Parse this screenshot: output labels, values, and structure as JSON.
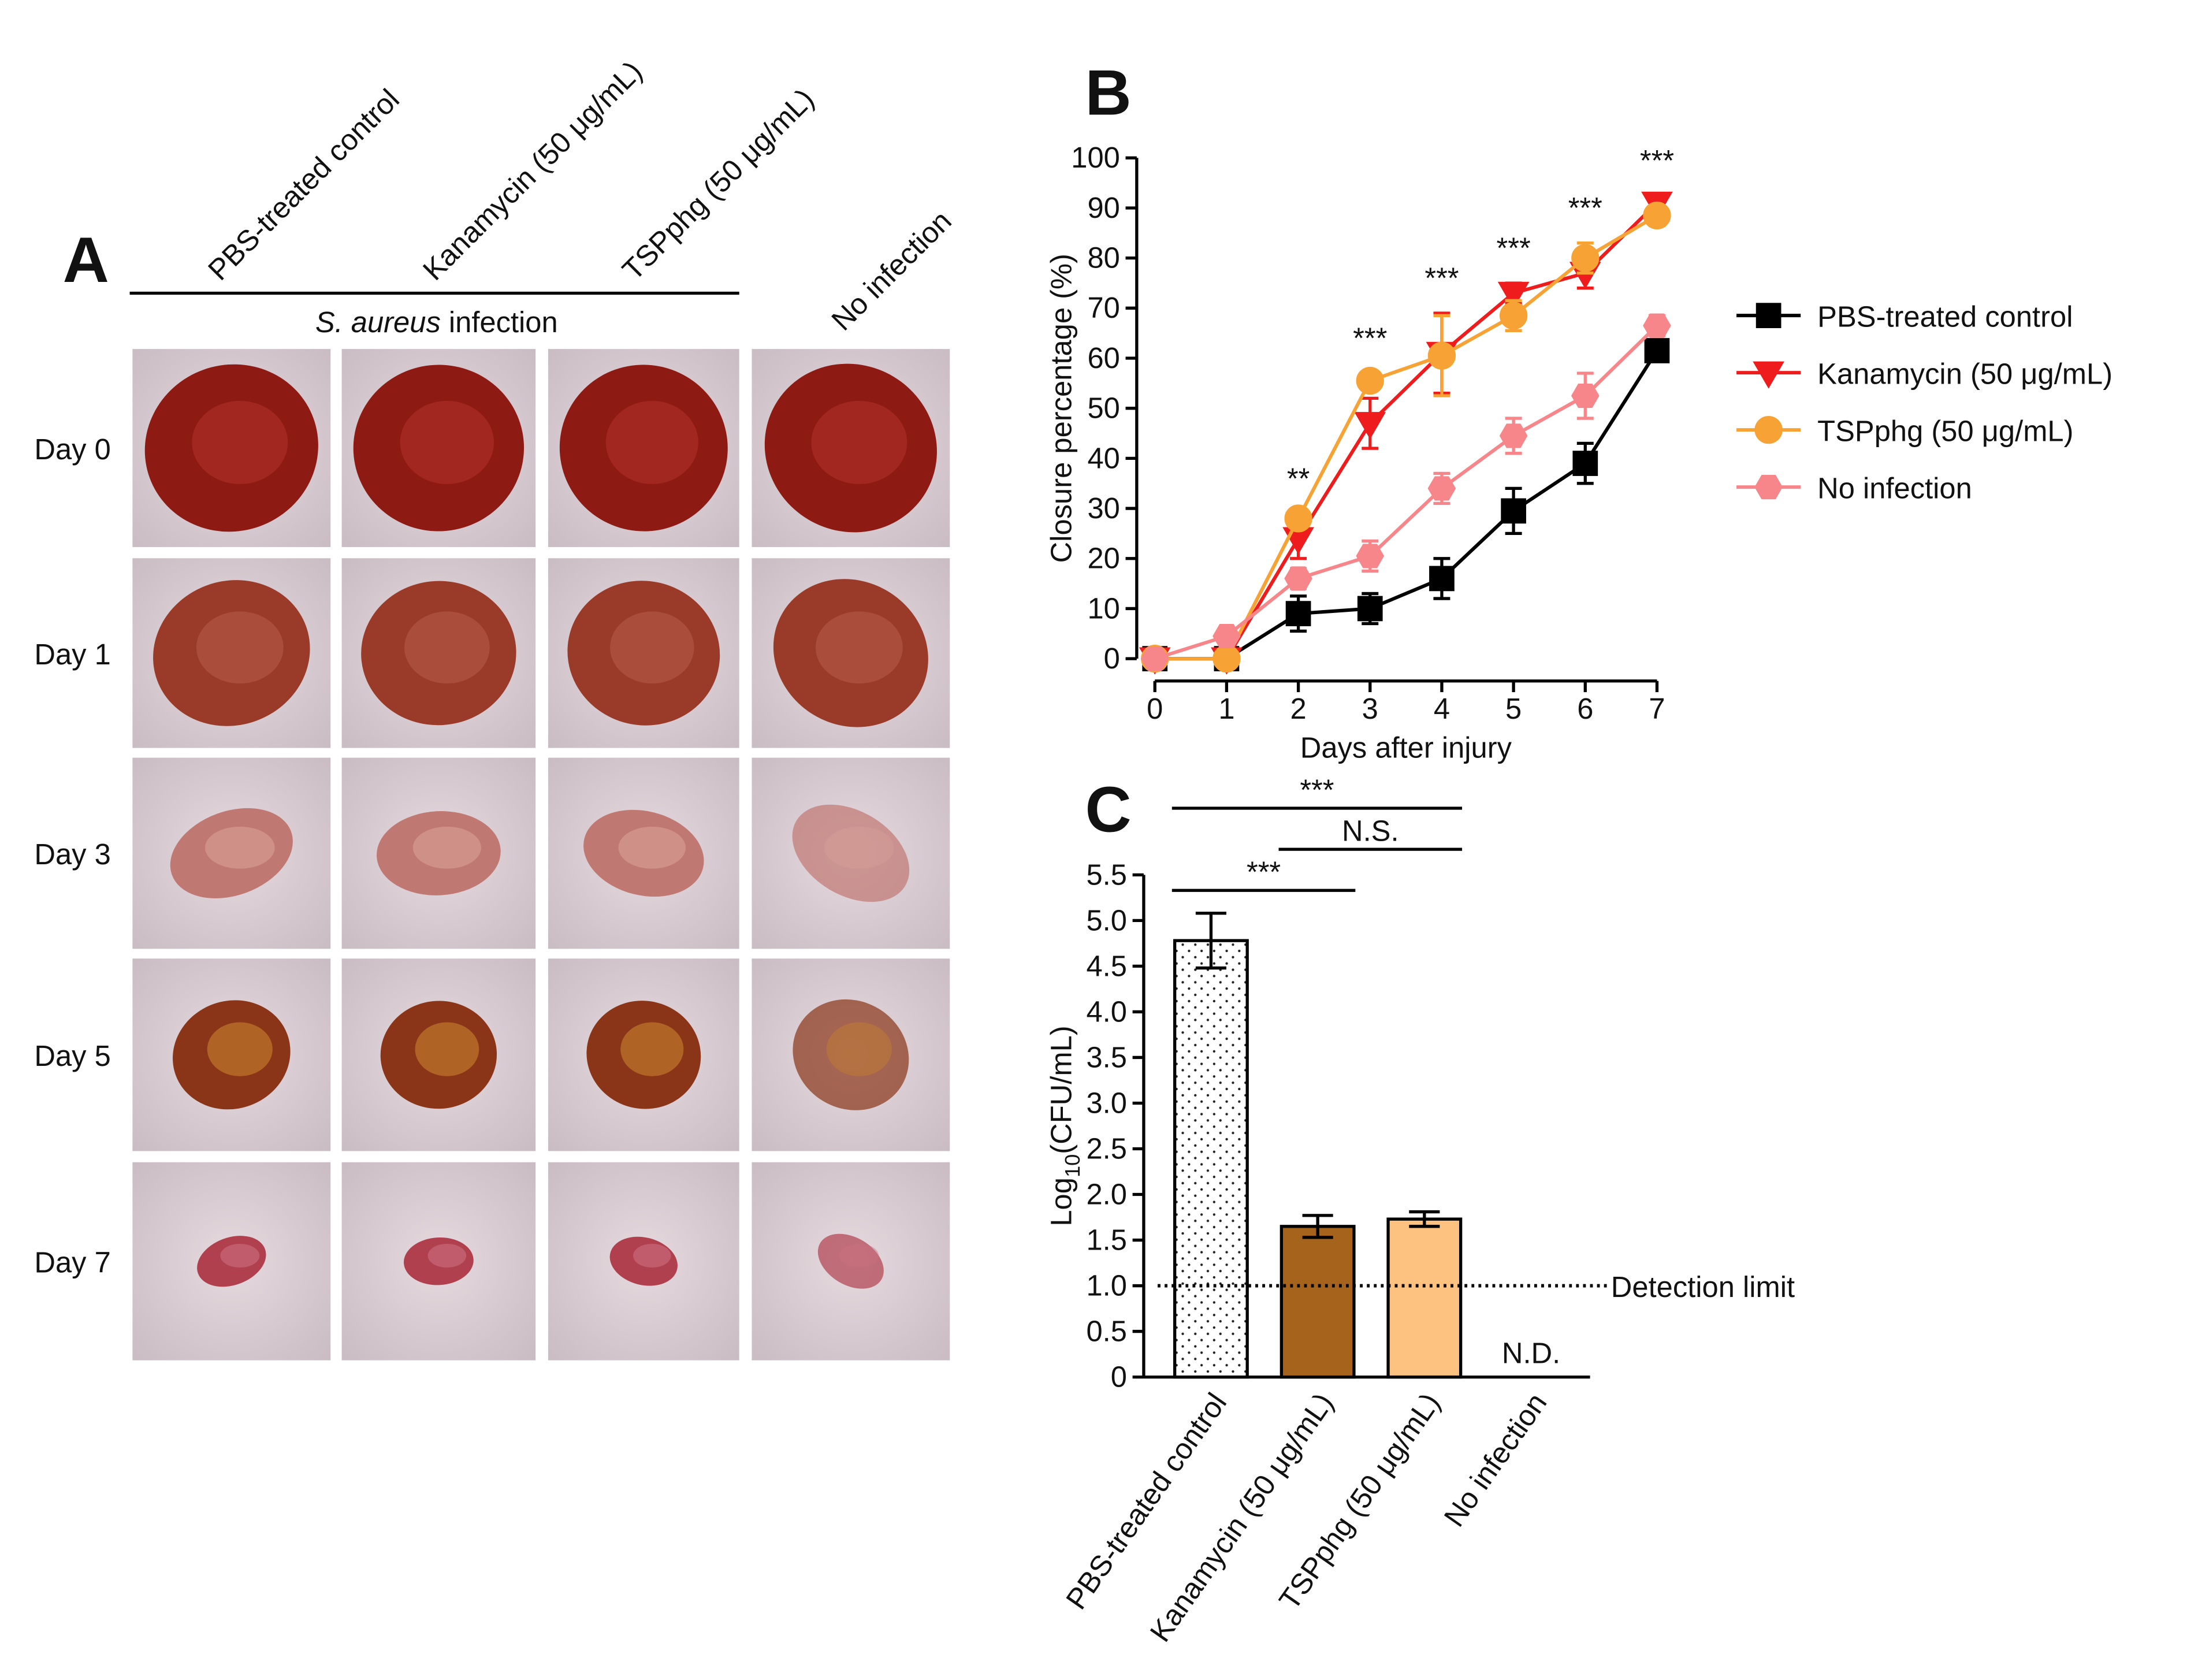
{
  "photo_grid": {
    "label": "A",
    "columns": [
      "PBS-treated control",
      "Kanamycin (50 μg/mL)",
      "TSPphg (50 μg/mL)",
      "No infection"
    ],
    "group_label": {
      "italic": "S. aureus",
      "text": " infection"
    },
    "rows": [
      "Day 0",
      "Day 1",
      "Day 3",
      "Day 5",
      "Day 7"
    ]
  },
  "chart_data": [
    {
      "type": "line",
      "label": "B",
      "xlabel": "Days after injury",
      "ylabel": "Closure percentage (%)",
      "x": [
        0,
        1,
        2,
        3,
        4,
        5,
        6,
        7
      ],
      "xlim": [
        0,
        7
      ],
      "xticks": [
        0,
        1,
        2,
        3,
        4,
        5,
        6,
        7
      ],
      "ylim": [
        0,
        100
      ],
      "yticks": [
        0,
        10,
        20,
        30,
        40,
        50,
        60,
        70,
        80,
        90,
        100
      ],
      "legend": "right",
      "series": [
        {
          "name": "PBS-treated control",
          "color": "#000000",
          "marker": "square",
          "values": [
            0,
            0,
            9,
            10,
            16,
            29.5,
            39,
            61.5
          ],
          "errors": [
            0,
            0,
            3.5,
            3,
            4,
            4.5,
            4,
            1
          ]
        },
        {
          "name": "Kanamycin (50 μg/mL)",
          "color": "#ee1c1c",
          "marker": "triangle-down",
          "values": [
            0,
            0,
            24,
            47,
            61,
            73,
            77,
            91
          ],
          "errors": [
            0,
            0,
            4,
            5,
            8,
            2,
            3,
            1.5
          ]
        },
        {
          "name": "TSPphg (50 μg/mL)",
          "color": "#f7a234",
          "marker": "circle",
          "values": [
            0,
            0,
            28,
            55.5,
            60.5,
            68.5,
            80,
            88.5
          ],
          "errors": [
            0,
            0,
            1,
            1.5,
            8,
            3,
            3,
            2
          ]
        },
        {
          "name": "No infection",
          "color": "#f6868a",
          "marker": "hexagon",
          "values": [
            0,
            4.5,
            16,
            20.5,
            34,
            44.5,
            52.5,
            66.5
          ],
          "errors": [
            0,
            1,
            2,
            3,
            3,
            3.5,
            4.5,
            2
          ]
        }
      ],
      "significance": {
        "x": [
          2,
          3,
          4,
          5,
          6,
          7
        ],
        "labels": [
          "**",
          "***",
          "***",
          "***",
          "***",
          "***"
        ]
      }
    },
    {
      "type": "bar",
      "label": "C",
      "ylabel": [
        "Log",
        "10",
        "(CFU/mL)"
      ],
      "categories": [
        "PBS-treated control",
        "Kanamycin (50 μg/mL)",
        "TSPphg (50 μg/mL)",
        "No infection"
      ],
      "values": [
        4.78,
        1.65,
        1.73,
        null
      ],
      "errors": [
        0.3,
        0.12,
        0.08,
        null
      ],
      "value_labels": [
        null,
        null,
        null,
        "N.D."
      ],
      "colors": [
        "#ffffff",
        "#a5631b",
        "#fdc180",
        null
      ],
      "patterns": [
        "dots",
        null,
        null,
        null
      ],
      "ylim": [
        0,
        5.5
      ],
      "yticks": [
        0,
        0.5,
        {
          "value": 1,
          "label": "1.0"
        },
        1.5,
        {
          "value": 2,
          "label": "2.0"
        },
        2.5,
        {
          "value": 3,
          "label": "3.0"
        },
        3.5,
        {
          "value": 4,
          "label": "4.0"
        },
        4.5,
        {
          "value": 5,
          "label": "5.0"
        },
        5.5
      ],
      "reference_line": {
        "value": 1,
        "label": "Detection limit",
        "style": "dotted"
      },
      "brackets": [
        {
          "from": 0,
          "to": 2,
          "label": "***"
        },
        {
          "from": 0,
          "to": 1,
          "label": "***"
        },
        {
          "from": 1,
          "to": 2,
          "label": "N.S."
        }
      ]
    }
  ]
}
